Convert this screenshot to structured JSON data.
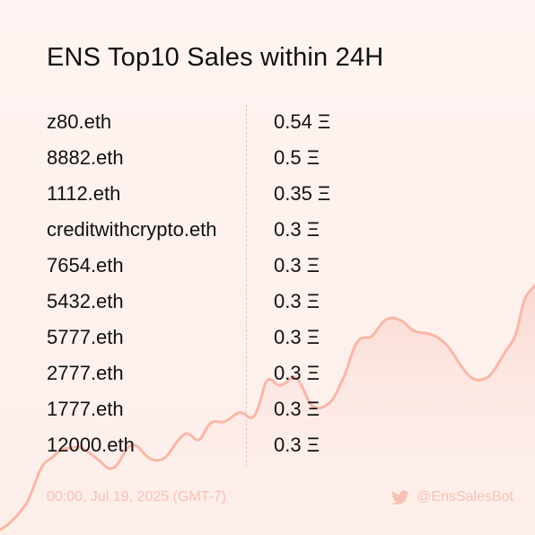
{
  "title": "ENS Top10 Sales within 24H",
  "sales": [
    {
      "name": "z80.eth",
      "price": "0.54 Ξ"
    },
    {
      "name": "8882.eth",
      "price": "0.5 Ξ"
    },
    {
      "name": "1112.eth",
      "price": "0.35 Ξ"
    },
    {
      "name": "creditwithcrypto.eth",
      "price": "0.3 Ξ"
    },
    {
      "name": "7654.eth",
      "price": "0.3 Ξ"
    },
    {
      "name": "5432.eth",
      "price": "0.3 Ξ"
    },
    {
      "name": "5777.eth",
      "price": "0.3 Ξ"
    },
    {
      "name": "2777.eth",
      "price": "0.3 Ξ"
    },
    {
      "name": "1777.eth",
      "price": "0.3 Ξ"
    },
    {
      "name": "12000.eth",
      "price": "0.3 Ξ"
    }
  ],
  "footer": {
    "timestamp": "00:00, Jul 19, 2025 (GMT-7)",
    "handle": "@EnsSalesBot",
    "icon": "twitter-icon"
  },
  "colors": {
    "background": "#fff4f1",
    "line": "#f8b7a8",
    "fill": "#fbd7cf",
    "text": "#111111",
    "muted": "#f7c1b5"
  }
}
